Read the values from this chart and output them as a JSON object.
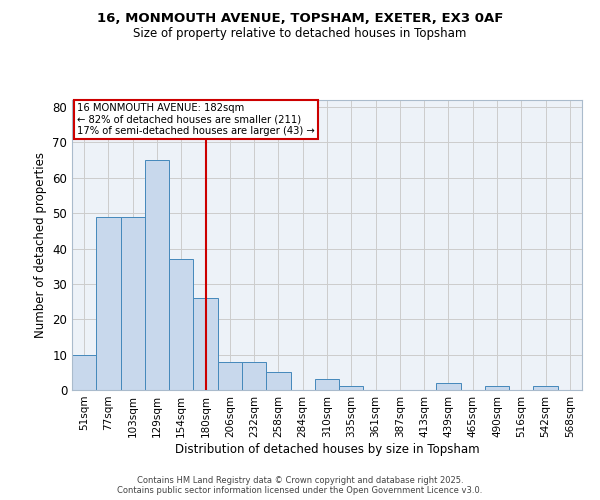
{
  "title_line1": "16, MONMOUTH AVENUE, TOPSHAM, EXETER, EX3 0AF",
  "title_line2": "Size of property relative to detached houses in Topsham",
  "xlabel": "Distribution of detached houses by size in Topsham",
  "ylabel": "Number of detached properties",
  "categories": [
    "51sqm",
    "77sqm",
    "103sqm",
    "129sqm",
    "154sqm",
    "180sqm",
    "206sqm",
    "232sqm",
    "258sqm",
    "284sqm",
    "310sqm",
    "335sqm",
    "361sqm",
    "387sqm",
    "413sqm",
    "439sqm",
    "465sqm",
    "490sqm",
    "516sqm",
    "542sqm",
    "568sqm"
  ],
  "values": [
    10,
    49,
    49,
    65,
    37,
    26,
    8,
    8,
    5,
    0,
    3,
    1,
    0,
    0,
    0,
    2,
    0,
    1,
    0,
    1,
    0
  ],
  "bar_color": "#c8d8ec",
  "bar_edge_color": "#4488bb",
  "vline_x": 5.0,
  "vline_color": "#cc0000",
  "annotation_text": "16 MONMOUTH AVENUE: 182sqm\n← 82% of detached houses are smaller (211)\n17% of semi-detached houses are larger (43) →",
  "annotation_box_color": "#ffffff",
  "annotation_box_edge_color": "#cc0000",
  "ylim": [
    0,
    82
  ],
  "yticks": [
    0,
    10,
    20,
    30,
    40,
    50,
    60,
    70,
    80
  ],
  "grid_color": "#cccccc",
  "bg_color": "#edf2f8",
  "footer_line1": "Contains HM Land Registry data © Crown copyright and database right 2025.",
  "footer_line2": "Contains public sector information licensed under the Open Government Licence v3.0."
}
